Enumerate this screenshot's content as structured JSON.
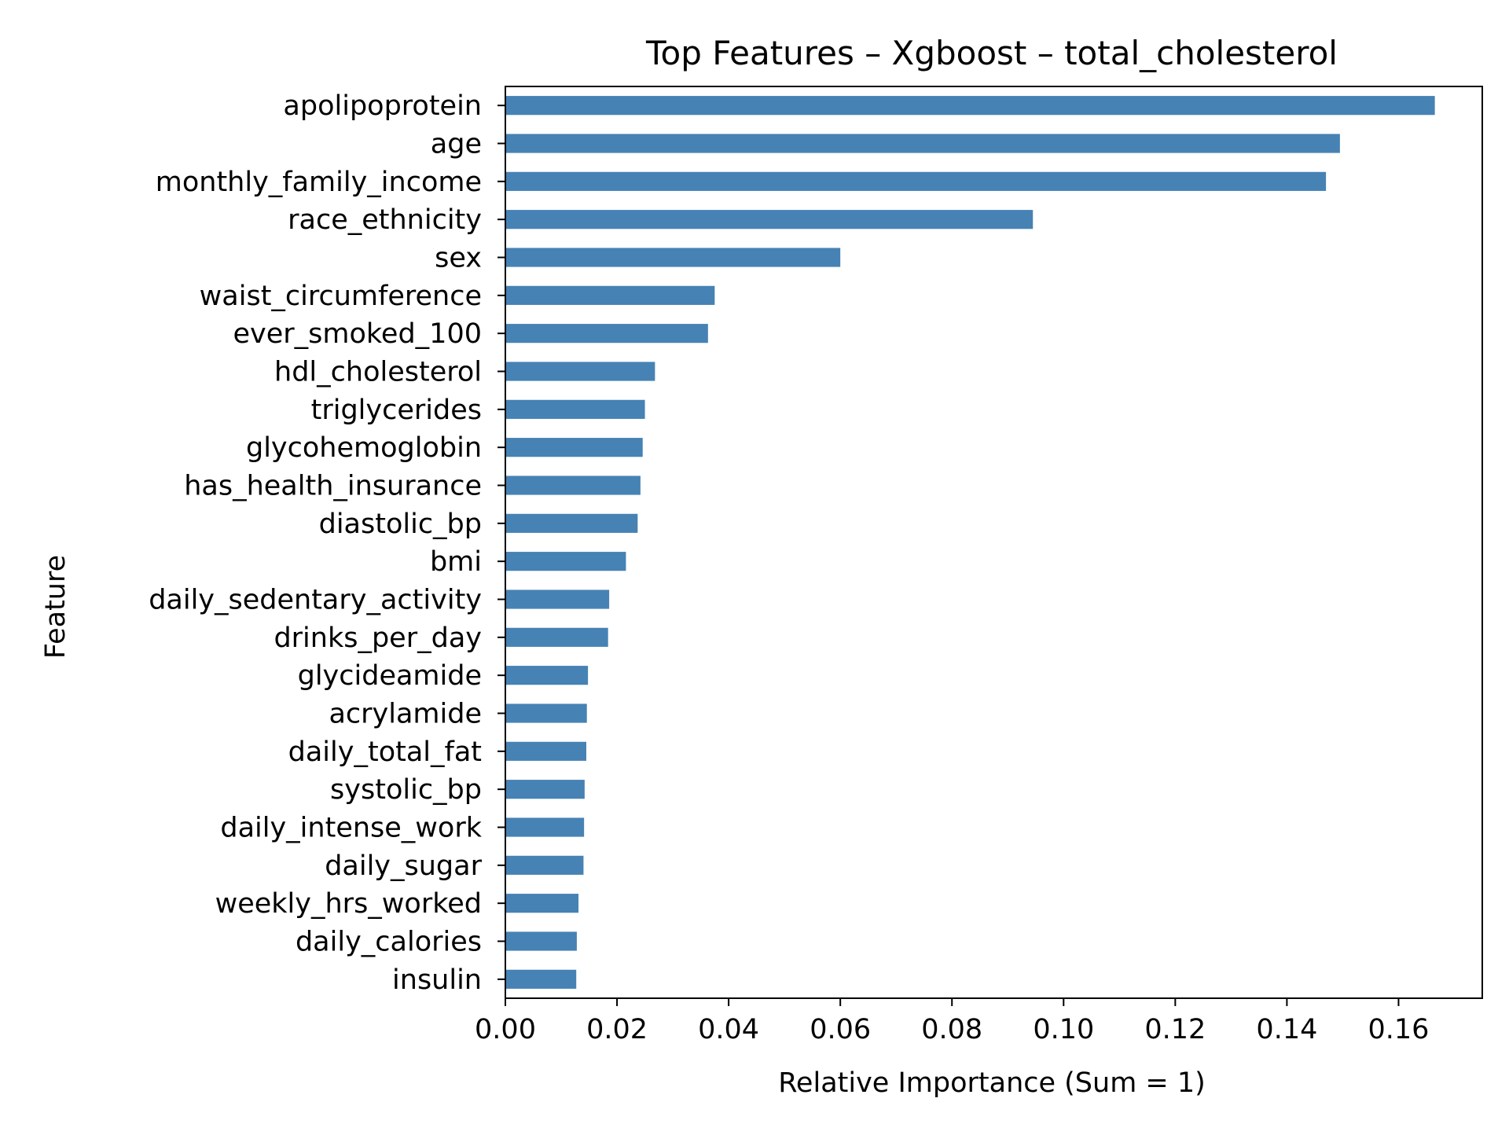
{
  "chart_data": {
    "type": "bar",
    "orientation": "horizontal",
    "title": "Top Features – Xgboost – total_cholesterol",
    "xlabel": "Relative Importance (Sum = 1)",
    "ylabel": "Feature",
    "xlim": [
      0,
      0.175
    ],
    "xticks": [
      0,
      0.02,
      0.04,
      0.06,
      0.08,
      0.1,
      0.12,
      0.14,
      0.16
    ],
    "xtick_labels": [
      "0.00",
      "0.02",
      "0.04",
      "0.06",
      "0.08",
      "0.10",
      "0.12",
      "0.14",
      "0.16"
    ],
    "grid": false,
    "bar_color": "#4682b4",
    "categories": [
      "apolipoprotein",
      "age",
      "monthly_family_income",
      "race_ethnicity",
      "sex",
      "waist_circumference",
      "ever_smoked_100",
      "hdl_cholesterol",
      "triglycerides",
      "glycohemoglobin",
      "has_health_insurance",
      "diastolic_bp",
      "bmi",
      "daily_sedentary_activity",
      "drinks_per_day",
      "glycideamide",
      "acrylamide",
      "daily_total_fat",
      "systolic_bp",
      "daily_intense_work",
      "daily_sugar",
      "weekly_hrs_worked",
      "daily_calories",
      "insulin"
    ],
    "values": [
      0.1665,
      0.1495,
      0.147,
      0.0945,
      0.06,
      0.0375,
      0.0363,
      0.0268,
      0.025,
      0.0246,
      0.0242,
      0.0237,
      0.0216,
      0.0186,
      0.0184,
      0.0148,
      0.0146,
      0.0145,
      0.0142,
      0.0141,
      0.014,
      0.0131,
      0.0128,
      0.0127
    ]
  }
}
